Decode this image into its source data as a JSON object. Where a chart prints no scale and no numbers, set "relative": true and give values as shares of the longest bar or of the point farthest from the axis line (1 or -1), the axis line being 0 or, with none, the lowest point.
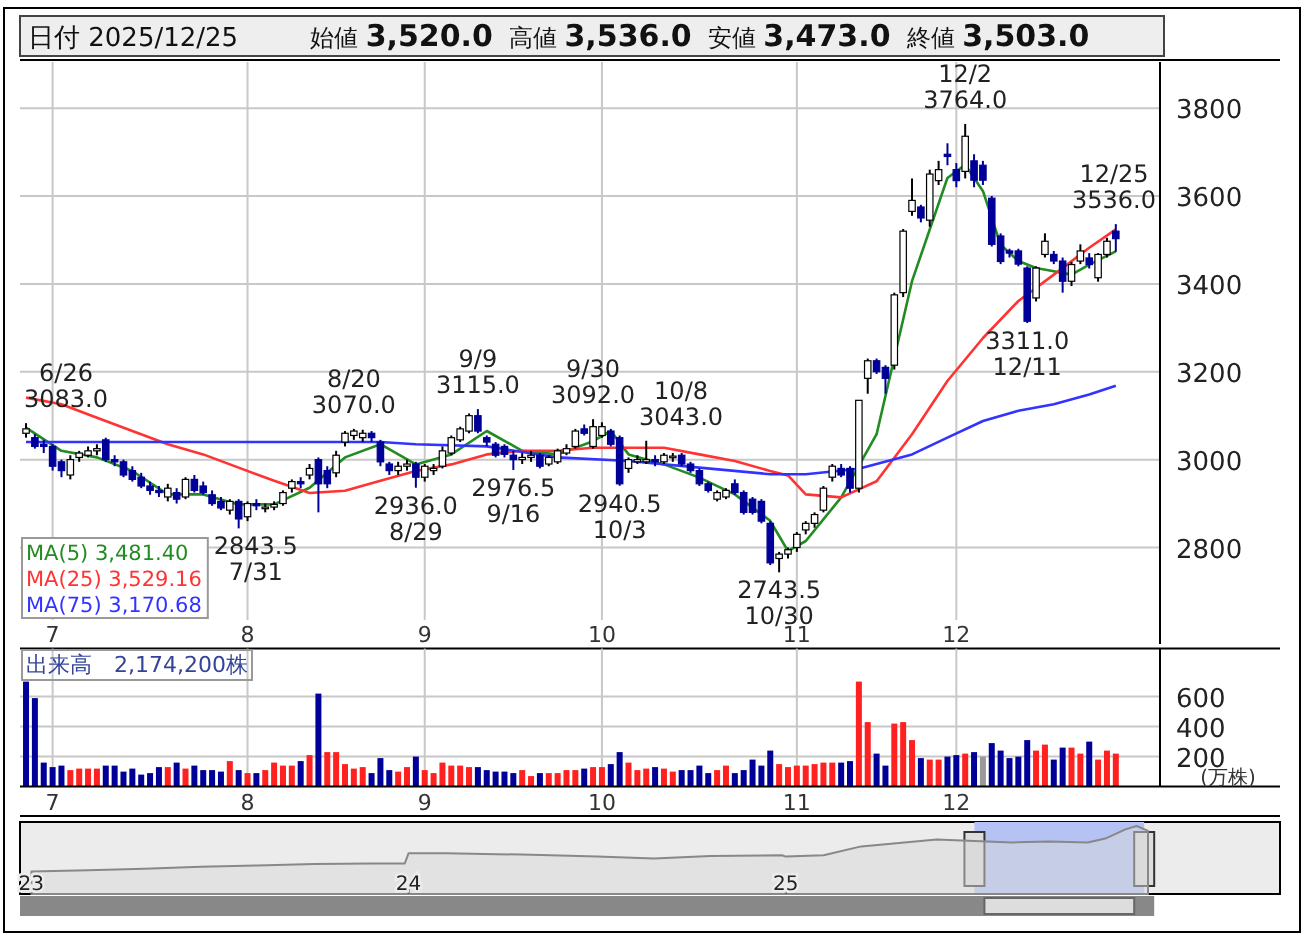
{
  "chart_data": [
    {
      "type": "candlestick",
      "title": "日付 2025/12/25",
      "subtitle": "始値 3,520.0 高値 3,536.0 安値 3,473.0 終値 3,503.0",
      "annotations": [
        "6/26\n3083.0",
        "2843.5\n7/31",
        "8/20\n3070.0",
        "2936.0\n8/29",
        "9/9\n3115.0",
        "2976.5\n9/16",
        "9/30\n3092.0",
        "2940.5\n10/3",
        "10/8\n3043.0",
        "2743.5\n10/30",
        "12/2\n3764.0",
        "3311.0\n12/11",
        "12/25\n3536.0"
      ],
      "categories": [
        null,
        null,
        null,
        "7",
        null,
        null,
        null,
        null,
        null,
        null,
        null,
        null,
        null,
        null,
        null,
        null,
        null,
        null,
        null,
        null,
        null,
        null,
        null,
        null,
        null,
        "8",
        null,
        null,
        null,
        null,
        null,
        null,
        null,
        null,
        null,
        null,
        null,
        null,
        null,
        null,
        null,
        null,
        null,
        null,
        null,
        "9",
        null,
        null,
        null,
        null,
        null,
        null,
        null,
        null,
        null,
        null,
        null,
        null,
        null,
        null,
        null,
        null,
        null,
        null,
        null,
        "10",
        null,
        null,
        null,
        null,
        null,
        null,
        null,
        null,
        null,
        null,
        null,
        null,
        null,
        null,
        null,
        null,
        null,
        null,
        null,
        null,
        null,
        "11",
        null,
        null,
        null,
        null,
        null,
        null,
        null,
        null,
        null,
        null,
        null,
        null,
        null,
        null,
        null,
        null,
        null,
        "12",
        null,
        null,
        null,
        null,
        null,
        null,
        null,
        null,
        null,
        null,
        null,
        null,
        null,
        null,
        null,
        null,
        null,
        null
      ],
      "colors": [
        "#ffffff",
        "#000099",
        "#000099",
        "#000099",
        "#000099",
        "#ffffff",
        "#ffffff",
        "#ffffff",
        "#ffffff",
        "#000099",
        "#000099",
        "#000099",
        "#000099",
        "#000099",
        "#000099",
        "#000099",
        "#ffffff",
        "#000099",
        "#ffffff",
        "#000099",
        "#000099",
        "#000099",
        "#000099",
        "#ffffff",
        "#000099",
        "#ffffff",
        "#000099",
        "#ffffff",
        "#ffffff",
        "#ffffff",
        "#ffffff",
        "#000099",
        "#ffffff",
        "#000099",
        "#000099",
        "#ffffff",
        "#ffffff",
        "#ffffff",
        "#ffffff",
        "#000099",
        "#000099",
        "#000099",
        "#ffffff",
        "#ffffff",
        "#000099",
        "#ffffff",
        "#ffffff",
        "#ffffff",
        "#ffffff",
        "#ffffff",
        "#ffffff",
        "#000099",
        "#000099",
        "#000099",
        "#000099",
        "#000099",
        "#ffffff",
        "#ffffff",
        "#000099",
        "#ffffff",
        "#ffffff",
        "#ffffff",
        "#ffffff",
        "#000099",
        "#ffffff",
        "#ffffff",
        "#000099",
        "#000099",
        "#ffffff",
        "#ffffff",
        "#ffffff",
        "#000099",
        "#ffffff",
        "#ffffff",
        "#000099",
        "#000099",
        "#000099",
        "#000099",
        "#ffffff",
        "#ffffff",
        "#000099",
        "#000099",
        "#000099",
        "#000099",
        "#000099",
        "#ffffff",
        "#ffffff",
        "#ffffff",
        "#ffffff",
        "#ffffff",
        "#ffffff",
        "#ffffff",
        "#000099",
        "#000099",
        "#ffffff",
        "#ffffff",
        "#000099",
        "#000099",
        "#ffffff",
        "#ffffff",
        "#ffffff",
        "#000099",
        "#ffffff",
        "#ffffff",
        "#000099",
        "#000099",
        "#ffffff",
        "#000099",
        "#000099",
        "#000099",
        "#000099",
        "#000099",
        "#000099",
        "#000099",
        "#ffffff",
        "#ffffff",
        "#000099",
        "#000099",
        "#ffffff",
        "#ffffff",
        "#000099",
        "#ffffff",
        "#ffffff",
        "#000099"
      ],
      "ohlc": [
        [
          3060,
          3083,
          3050,
          3070
        ],
        [
          3050,
          3058,
          3025,
          3030
        ],
        [
          3035,
          3045,
          3015,
          3030
        ],
        [
          3030,
          3035,
          2975,
          2985
        ],
        [
          2995,
          3000,
          2960,
          2975
        ],
        [
          2965,
          3010,
          2955,
          3000
        ],
        [
          3005,
          3020,
          2995,
          3015
        ],
        [
          3010,
          3030,
          3005,
          3020
        ],
        [
          3020,
          3035,
          3010,
          3025
        ],
        [
          3045,
          3050,
          2995,
          3000
        ],
        [
          3000,
          3010,
          2985,
          2995
        ],
        [
          2995,
          3000,
          2960,
          2965
        ],
        [
          2975,
          2985,
          2950,
          2955
        ],
        [
          2960,
          2970,
          2935,
          2940
        ],
        [
          2940,
          2950,
          2920,
          2930
        ],
        [
          2930,
          2940,
          2915,
          2925
        ],
        [
          2915,
          2945,
          2905,
          2935
        ],
        [
          2925,
          2935,
          2900,
          2910
        ],
        [
          2915,
          2960,
          2910,
          2955
        ],
        [
          2955,
          2965,
          2925,
          2930
        ],
        [
          2940,
          2950,
          2920,
          2925
        ],
        [
          2920,
          2930,
          2895,
          2900
        ],
        [
          2905,
          2915,
          2885,
          2890
        ],
        [
          2885,
          2910,
          2875,
          2905
        ],
        [
          2905,
          2910,
          2843.5,
          2865
        ],
        [
          2870,
          2905,
          2860,
          2900
        ],
        [
          2900,
          2910,
          2885,
          2895
        ],
        [
          2890,
          2900,
          2880,
          2892
        ],
        [
          2892,
          2905,
          2885,
          2898
        ],
        [
          2900,
          2930,
          2895,
          2925
        ],
        [
          2935,
          2955,
          2925,
          2950
        ],
        [
          2950,
          2960,
          2935,
          2945
        ],
        [
          2965,
          2990,
          2955,
          2980
        ],
        [
          3000,
          3005,
          2880,
          2945
        ],
        [
          2975,
          2985,
          2935,
          2945
        ],
        [
          2970,
          3020,
          2960,
          3010
        ],
        [
          3040,
          3065,
          3030,
          3060
        ],
        [
          3055,
          3070,
          3045,
          3065
        ],
        [
          3050,
          3068,
          3040,
          3060
        ],
        [
          3060,
          3065,
          3040,
          3050
        ],
        [
          3040,
          3045,
          2985,
          2995
        ],
        [
          2990,
          2995,
          2965,
          2975
        ],
        [
          2975,
          2995,
          2965,
          2985
        ],
        [
          2985,
          3000,
          2975,
          2990
        ],
        [
          2990,
          2995,
          2936,
          2960
        ],
        [
          2960,
          2990,
          2950,
          2985
        ],
        [
          2975,
          2990,
          2965,
          2980
        ],
        [
          2985,
          3030,
          2980,
          3020
        ],
        [
          3015,
          3055,
          3010,
          3050
        ],
        [
          3045,
          3075,
          3040,
          3070
        ],
        [
          3065,
          3105,
          3060,
          3100
        ],
        [
          3100,
          3115,
          3060,
          3065
        ],
        [
          3050,
          3055,
          3030,
          3040
        ],
        [
          3035,
          3040,
          3005,
          3010
        ],
        [
          3030,
          3035,
          3005,
          3012
        ],
        [
          3010,
          3020,
          2976.5,
          3000
        ],
        [
          3000,
          3015,
          2990,
          3005
        ],
        [
          3005,
          3020,
          2995,
          3010
        ],
        [
          3010,
          3015,
          2980,
          2985
        ],
        [
          2990,
          3010,
          2985,
          3005
        ],
        [
          2995,
          3025,
          2990,
          3020
        ],
        [
          3015,
          3035,
          3010,
          3025
        ],
        [
          3030,
          3070,
          3025,
          3065
        ],
        [
          3070,
          3080,
          3055,
          3060
        ],
        [
          3030,
          3092,
          3025,
          3075
        ],
        [
          3055,
          3085,
          3050,
          3075
        ],
        [
          3065,
          3070,
          3030,
          3035
        ],
        [
          3050,
          3055,
          2940.5,
          2945
        ],
        [
          2980,
          3005,
          2970,
          3000
        ],
        [
          2995,
          3010,
          2990,
          3000
        ],
        [
          2995,
          3043,
          2990,
          3000
        ],
        [
          3000,
          3010,
          2985,
          2995
        ],
        [
          2995,
          3015,
          2990,
          3010
        ],
        [
          3005,
          3015,
          2995,
          3008
        ],
        [
          3010,
          3015,
          2985,
          2990
        ],
        [
          2990,
          2995,
          2970,
          2975
        ],
        [
          2975,
          2980,
          2940,
          2945
        ],
        [
          2945,
          2950,
          2925,
          2930
        ],
        [
          2910,
          2930,
          2905,
          2925
        ],
        [
          2915,
          2935,
          2910,
          2930
        ],
        [
          2945,
          2955,
          2920,
          2925
        ],
        [
          2925,
          2930,
          2875,
          2880
        ],
        [
          2910,
          2915,
          2875,
          2880
        ],
        [
          2905,
          2910,
          2855,
          2860
        ],
        [
          2855,
          2860,
          2760,
          2765
        ],
        [
          2775,
          2790,
          2743.5,
          2785
        ],
        [
          2785,
          2800,
          2775,
          2795
        ],
        [
          2800,
          2835,
          2790,
          2830
        ],
        [
          2840,
          2860,
          2830,
          2855
        ],
        [
          2855,
          2880,
          2845,
          2875
        ],
        [
          2885,
          2940,
          2880,
          2935
        ],
        [
          2960,
          2990,
          2950,
          2985
        ],
        [
          2980,
          2990,
          2960,
          2965
        ],
        [
          2980,
          2985,
          2925,
          2935
        ],
        [
          2935,
          3135,
          2925,
          3135
        ],
        [
          3185,
          3230,
          3150,
          3225
        ],
        [
          3225,
          3230,
          3195,
          3200
        ],
        [
          3210,
          3215,
          3150,
          3185
        ],
        [
          3215,
          3380,
          3205,
          3375
        ],
        [
          3380,
          3525,
          3370,
          3520
        ],
        [
          3565,
          3640,
          3555,
          3590
        ],
        [
          3575,
          3580,
          3540,
          3550
        ],
        [
          3545,
          3660,
          3530,
          3650
        ],
        [
          3635,
          3680,
          3625,
          3660
        ],
        [
          3695,
          3720,
          3670,
          3690
        ],
        [
          3660,
          3675,
          3620,
          3635
        ],
        [
          3656,
          3764,
          3640,
          3736
        ],
        [
          3680,
          3695,
          3620,
          3636
        ],
        [
          3670,
          3680,
          3625,
          3636
        ],
        [
          3595,
          3600,
          3485,
          3490
        ],
        [
          3509,
          3515,
          3445,
          3451
        ],
        [
          3475,
          3480,
          3460,
          3470
        ],
        [
          3475,
          3480,
          3440,
          3445
        ],
        [
          3436,
          3440,
          3311,
          3315
        ],
        [
          3368,
          3440,
          3360,
          3436
        ],
        [
          3467,
          3515,
          3460,
          3497
        ],
        [
          3467,
          3475,
          3445,
          3452
        ],
        [
          3452,
          3460,
          3380,
          3406
        ],
        [
          3406,
          3450,
          3395,
          3444
        ],
        [
          3452,
          3490,
          3445,
          3475
        ],
        [
          3459,
          3470,
          3435,
          3444
        ],
        [
          3414,
          3470,
          3405,
          3467
        ],
        [
          3467,
          3505,
          3460,
          3497
        ],
        [
          3520,
          3536,
          3473,
          3503
        ]
      ],
      "series": [
        {
          "type": "line",
          "name": "MA(5) 3,481.40",
          "color": "#228b22",
          "values": [
            3073,
            null,
            null,
            null,
            3020,
            null,
            null,
            null,
            3005,
            null,
            null,
            null,
            2974,
            null,
            null,
            null,
            2921,
            null,
            null,
            null,
            2921,
            null,
            null,
            null,
            2898,
            null,
            null,
            null,
            2898,
            null,
            null,
            null,
            2936,
            null,
            null,
            null,
            3005,
            null,
            null,
            null,
            3035,
            null,
            null,
            null,
            2989,
            null,
            null,
            null,
            3012,
            null,
            null,
            null,
            3065,
            null,
            null,
            null,
            3020,
            null,
            null,
            null,
            3012,
            null,
            null,
            null,
            3042,
            null,
            3065,
            null,
            3012,
            null,
            null,
            null,
            2989,
            null,
            null,
            null,
            2959,
            null,
            null,
            null,
            2921,
            null,
            null,
            null,
            2861,
            null,
            2792,
            null,
            2815,
            null,
            null,
            null,
            2914,
            null,
            null,
            null,
            3058,
            null,
            null,
            null,
            3406,
            null,
            null,
            null,
            3641,
            null,
            3671,
            null,
            3611,
            null,
            3489,
            null,
            3452,
            null,
            3436,
            null,
            3429,
            null,
            3421,
            null,
            3444,
            null,
            null,
            3474
          ]
        },
        {
          "type": "line",
          "name": "MA(25) 3,529.16",
          "color": "#ff3333",
          "values": [
            3141,
            null,
            null,
            null,
            3126,
            null,
            null,
            null,
            3095,
            null,
            null,
            null,
            3065,
            null,
            null,
            null,
            3035,
            null,
            null,
            null,
            3012,
            null,
            null,
            null,
            2982,
            null,
            null,
            null,
            2952,
            null,
            null,
            null,
            2924,
            null,
            null,
            null,
            2929,
            null,
            null,
            null,
            2952,
            null,
            null,
            null,
            2974,
            null,
            null,
            null,
            2989,
            null,
            null,
            null,
            3012,
            null,
            null,
            null,
            3020,
            null,
            null,
            null,
            3020,
            null,
            null,
            null,
            3027,
            null,
            null,
            null,
            3027,
            null,
            null,
            null,
            3027,
            null,
            null,
            null,
            3012,
            null,
            null,
            null,
            2997,
            null,
            null,
            null,
            2974,
            null,
            2964,
            null,
            2921,
            null,
            null,
            null,
            2914,
            null,
            null,
            null,
            2951,
            null,
            null,
            null,
            3058,
            null,
            null,
            null,
            3179,
            null,
            null,
            null,
            3277,
            null,
            null,
            null,
            3361,
            null,
            null,
            null,
            3421,
            null,
            null,
            null,
            3482,
            null,
            null,
            3524
          ]
        },
        {
          "type": "line",
          "name": "MA(75) 3,170.68",
          "color": "#3333ff",
          "values": [
            3040,
            null,
            null,
            null,
            null,
            null,
            null,
            null,
            3040,
            null,
            null,
            null,
            null,
            null,
            null,
            null,
            3040,
            null,
            null,
            null,
            null,
            null,
            null,
            null,
            3040,
            null,
            null,
            null,
            null,
            null,
            null,
            null,
            3040,
            null,
            null,
            null,
            null,
            null,
            null,
            null,
            3040,
            null,
            null,
            null,
            3035,
            null,
            null,
            null,
            null,
            null,
            null,
            null,
            3030,
            null,
            null,
            null,
            null,
            null,
            null,
            null,
            3005,
            null,
            null,
            null,
            null,
            null,
            null,
            null,
            2997,
            null,
            null,
            null,
            null,
            null,
            null,
            null,
            2982,
            null,
            null,
            null,
            null,
            null,
            null,
            null,
            2967,
            null,
            null,
            null,
            2967,
            null,
            null,
            null,
            null,
            null,
            2979,
            null,
            null,
            null,
            null,
            null,
            3012,
            null,
            null,
            null,
            3050,
            null,
            null,
            null,
            3088,
            null,
            null,
            null,
            3111,
            null,
            null,
            null,
            3126,
            null,
            null,
            null,
            3148,
            null,
            null,
            3168
          ]
        }
      ],
      "ylim": [
        2635,
        3905
      ],
      "yticks": [
        2800,
        3000,
        3200,
        3400,
        3600,
        3800
      ],
      "grid": true,
      "legend": "bottom left"
    },
    {
      "type": "bar",
      "title": "出来高　2,174,200株",
      "ylabel": "(万株)",
      "categories": [
        null,
        null,
        null,
        "7",
        null,
        null,
        null,
        null,
        null,
        null,
        null,
        null,
        null,
        null,
        null,
        null,
        null,
        null,
        null,
        null,
        null,
        null,
        null,
        null,
        null,
        "8",
        null,
        null,
        null,
        null,
        null,
        null,
        null,
        null,
        null,
        null,
        null,
        null,
        null,
        null,
        null,
        null,
        null,
        null,
        null,
        "9",
        null,
        null,
        null,
        null,
        null,
        null,
        null,
        null,
        null,
        null,
        null,
        null,
        null,
        null,
        null,
        null,
        null,
        null,
        null,
        "10",
        null,
        null,
        null,
        null,
        null,
        null,
        null,
        null,
        null,
        null,
        null,
        null,
        null,
        null,
        null,
        null,
        null,
        null,
        null,
        null,
        null,
        "11",
        null,
        null,
        null,
        null,
        null,
        null,
        null,
        null,
        null,
        null,
        null,
        null,
        null,
        null,
        null,
        null,
        null,
        "12",
        null,
        null,
        null,
        null,
        null,
        null,
        null,
        null,
        null,
        null,
        null,
        null,
        null,
        null,
        null,
        null,
        null,
        null
      ],
      "values": [
        700,
        590,
        160,
        130,
        140,
        110,
        120,
        120,
        120,
        140,
        140,
        100,
        120,
        80,
        90,
        130,
        130,
        160,
        120,
        140,
        110,
        110,
        100,
        170,
        110,
        90,
        90,
        110,
        160,
        140,
        140,
        170,
        210,
        620,
        230,
        230,
        150,
        120,
        130,
        90,
        190,
        110,
        100,
        130,
        200,
        110,
        90,
        160,
        140,
        140,
        130,
        130,
        110,
        100,
        100,
        90,
        110,
        70,
        90,
        90,
        90,
        110,
        110,
        120,
        130,
        130,
        150,
        230,
        160,
        110,
        120,
        130,
        120,
        100,
        110,
        110,
        140,
        90,
        110,
        140,
        90,
        110,
        180,
        140,
        240,
        150,
        130,
        140,
        140,
        150,
        160,
        160,
        160,
        170,
        700,
        430,
        220,
        140,
        420,
        430,
        310,
        190,
        180,
        180,
        200,
        210,
        220,
        230,
        200,
        290,
        240,
        190,
        200,
        310,
        240,
        280,
        180,
        260,
        260,
        220,
        300,
        180,
        240,
        220
      ],
      "colors": [
        "#000099",
        "#000099",
        "#000099",
        "#000099",
        "#000099",
        "#ff2020",
        "#ff2020",
        "#ff2020",
        "#ff2020",
        "#000099",
        "#000099",
        "#000099",
        "#000099",
        "#000099",
        "#000099",
        "#000099",
        "#ff2020",
        "#000099",
        "#ff2020",
        "#000099",
        "#000099",
        "#000099",
        "#000099",
        "#ff2020",
        "#000099",
        "#ff2020",
        "#000099",
        "#ff2020",
        "#ff2020",
        "#ff2020",
        "#ff2020",
        "#000099",
        "#ff2020",
        "#000099",
        "#ff2020",
        "#ff2020",
        "#ff2020",
        "#ff2020",
        "#ff2020",
        "#000099",
        "#000099",
        "#000099",
        "#ff2020",
        "#ff2020",
        "#000099",
        "#ff2020",
        "#ff2020",
        "#ff2020",
        "#ff2020",
        "#ff2020",
        "#ff2020",
        "#000099",
        "#000099",
        "#000099",
        "#000099",
        "#000099",
        "#ff2020",
        "#ff2020",
        "#000099",
        "#ff2020",
        "#ff2020",
        "#ff2020",
        "#ff2020",
        "#000099",
        "#ff2020",
        "#ff2020",
        "#000099",
        "#000099",
        "#ff2020",
        "#ff2020",
        "#ff2020",
        "#000099",
        "#ff2020",
        "#ff2020",
        "#000099",
        "#000099",
        "#000099",
        "#000099",
        "#ff2020",
        "#ff2020",
        "#000099",
        "#000099",
        "#000099",
        "#000099",
        "#000099",
        "#ff2020",
        "#ff2020",
        "#ff2020",
        "#ff2020",
        "#ff2020",
        "#ff2020",
        "#ff2020",
        "#000099",
        "#000099",
        "#ff2020",
        "#ff2020",
        "#000099",
        "#000099",
        "#ff2020",
        "#ff2020",
        "#ff2020",
        "#000099",
        "#ff2020",
        "#ff2020",
        "#000099",
        "#000099",
        "#ff2020",
        "#000099",
        "#999999",
        "#000099",
        "#000099",
        "#000099",
        "#000099",
        "#000099",
        "#ff2020",
        "#ff2020",
        "#000099",
        "#000099",
        "#ff2020",
        "#ff2020",
        "#000099",
        "#ff2020",
        "#ff2020",
        "#ff2020"
      ],
      "ylim": [
        0,
        920
      ],
      "yticks": [
        200,
        400,
        600
      ],
      "grid": true
    },
    {
      "type": "area",
      "relative": true,
      "color": "#888888",
      "x": [
        2023.0,
        2023.15,
        2023.3,
        2023.45,
        2023.6,
        2023.75,
        2023.9,
        2023.99,
        2024.0,
        2024.1,
        2024.3,
        2024.5,
        2024.65,
        2024.8,
        2024.99,
        2025.0,
        2025.1,
        2025.2,
        2025.3,
        2025.4,
        2025.5,
        2025.6,
        2025.7,
        2025.8,
        2025.85,
        2025.9,
        2025.93,
        2025.96
      ],
      "values": [
        0.33,
        0.35,
        0.37,
        0.4,
        0.42,
        0.44,
        0.45,
        0.45,
        0.6,
        0.6,
        0.58,
        0.55,
        0.52,
        0.56,
        0.57,
        0.55,
        0.57,
        0.7,
        0.75,
        0.8,
        0.78,
        0.76,
        0.77,
        0.76,
        0.82,
        0.95,
        1.0,
        0.93
      ],
      "xlim": [
        2022.97,
        2026.31
      ],
      "xticks": [
        {
          "value": 2023,
          "label": "23"
        },
        {
          "value": 2024,
          "label": "24"
        },
        {
          "value": 2025,
          "label": "25"
        }
      ],
      "bands": [
        {
          "axis": "x",
          "from": 2025.5,
          "to": 2025.95,
          "color": "#b4c2f4"
        }
      ]
    }
  ]
}
